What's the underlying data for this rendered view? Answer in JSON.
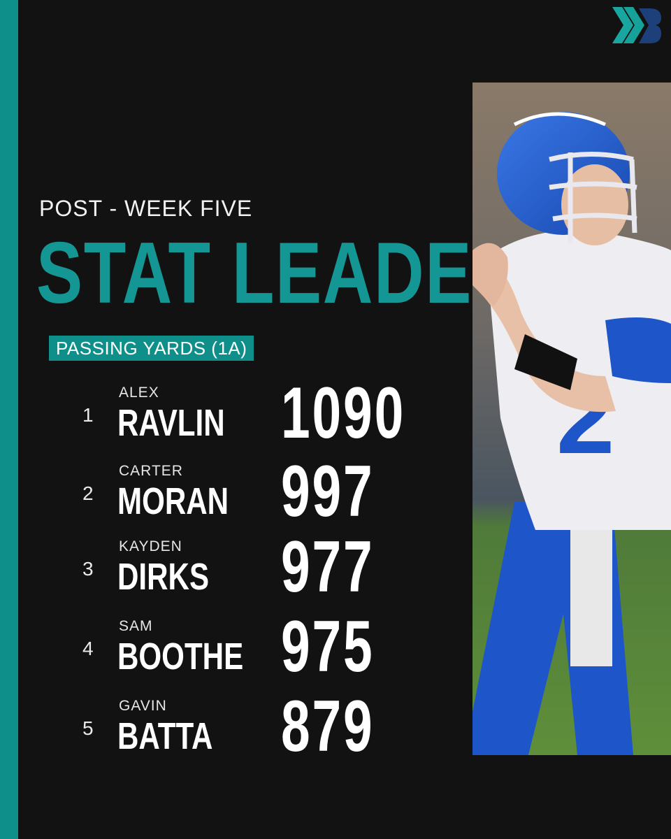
{
  "header": {
    "subtitle": "POST - WEEK FIVE",
    "title": "STAT LEADERS",
    "category": "PASSING YARDS (1A)"
  },
  "leaders": [
    {
      "rank": "1",
      "first": "ALEX",
      "last": "RAVLIN",
      "yards": "1090"
    },
    {
      "rank": "2",
      "first": "CARTER",
      "last": "MORAN",
      "yards": "997"
    },
    {
      "rank": "3",
      "first": "KAYDEN",
      "last": "DIRKS",
      "yards": "977"
    },
    {
      "rank": "4",
      "first": "SAM",
      "last": "BOOTHE",
      "yards": "975"
    },
    {
      "rank": "5",
      "first": "GAVIN",
      "last": "BATTA",
      "yards": "879"
    }
  ],
  "colors": {
    "background": "#121212",
    "accent_teal": "#139694",
    "jersey_blue": "#1e55c8"
  },
  "icons": {
    "brand_logo": "chevron-b-logo-icon"
  }
}
